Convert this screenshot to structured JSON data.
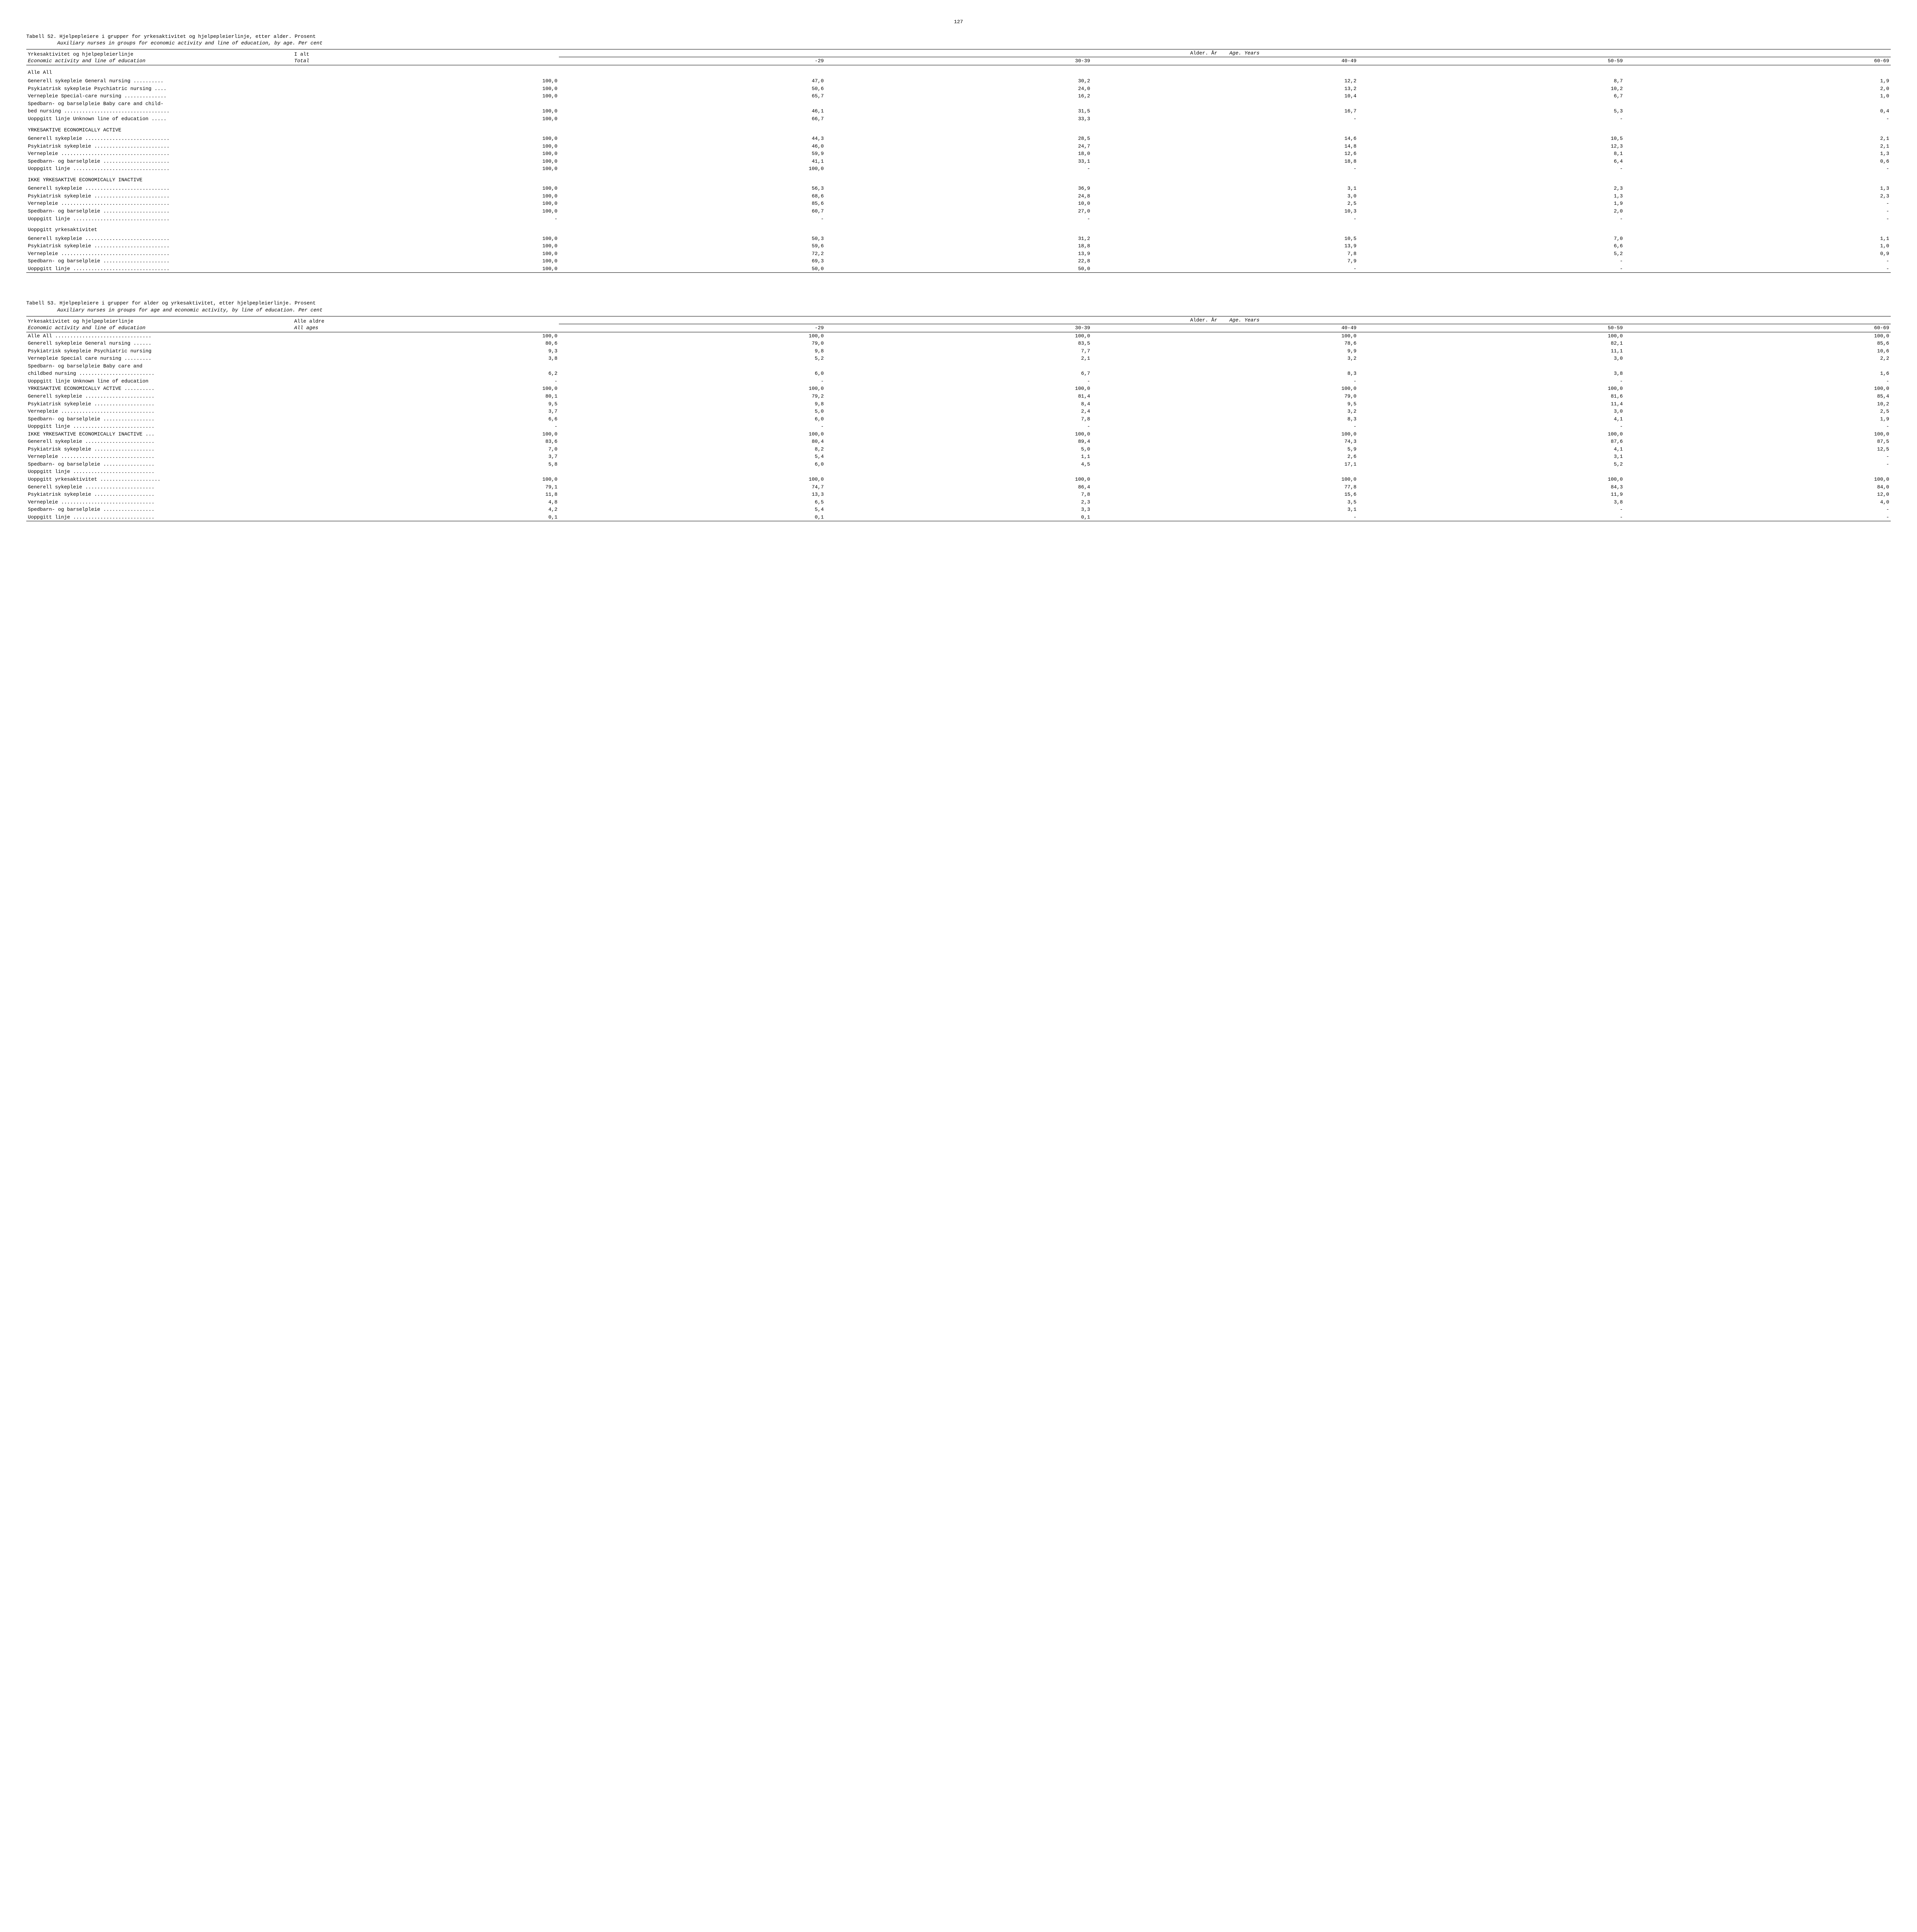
{
  "page_number": "127",
  "tables": [
    {
      "title_no": "Tabell 52.  Hjelpepleiere i grupper for yrkesaktivitet og hjelpepleierlinje, etter alder.  Prosent",
      "title_en": "Auxiliary nurses in groups for economic activity and line of education, by age.  Per cent",
      "header": {
        "label_no": "Yrkesaktivitet og hjelpepleierlinje",
        "label_en": "Economic activity and line of education",
        "total_no": "I alt",
        "total_en": "Total",
        "age_no": "Alder. År",
        "age_en": "Age. Years",
        "cols": [
          "-29",
          "30-39",
          "40-49",
          "50-59",
          "60-69"
        ]
      },
      "sections": [
        {
          "heading": "Alle  All",
          "heading_italic_part": "All",
          "rows": [
            {
              "label": "Generell sykepleie  General nursing ..........",
              "v": [
                "100,0",
                "47,0",
                "30,2",
                "12,2",
                "8,7",
                "1,9"
              ]
            },
            {
              "label": "Psykiatrisk sykepleie  Psychiatric nursing ....",
              "v": [
                "100,0",
                "50,6",
                "24,0",
                "13,2",
                "10,2",
                "2,0"
              ]
            },
            {
              "label": "Vernepleie  Special-care nursing ..............",
              "v": [
                "100,0",
                "65,7",
                "16,2",
                "10,4",
                "6,7",
                "1,0"
              ]
            },
            {
              "label": "Spedbarn- og barselpleie  Baby care and child-",
              "v": [
                "",
                "",
                "",
                "",
                "",
                ""
              ]
            },
            {
              "label": "bed nursing ...................................",
              "v": [
                "100,0",
                "46,1",
                "31,5",
                "16,7",
                "5,3",
                "0,4"
              ]
            },
            {
              "label": "Uoppgitt linje  Unknown line of education .....",
              "v": [
                "100,0",
                "66,7",
                "33,3",
                "-",
                "-",
                "-"
              ]
            }
          ]
        },
        {
          "heading": "YRKESAKTIVE  ECONOMICALLY ACTIVE",
          "rows": [
            {
              "label": "Generell sykepleie ............................",
              "v": [
                "100,0",
                "44,3",
                "28,5",
                "14,6",
                "10,5",
                "2,1"
              ]
            },
            {
              "label": "Psykiatrisk sykepleie .........................",
              "v": [
                "100,0",
                "46,0",
                "24,7",
                "14,8",
                "12,3",
                "2,1"
              ]
            },
            {
              "label": "Vernepleie ....................................",
              "v": [
                "100,0",
                "59,9",
                "18,0",
                "12,6",
                "8,1",
                "1,3"
              ]
            },
            {
              "label": "Spedbarn- og barselpleie ......................",
              "v": [
                "100,0",
                "41,1",
                "33,1",
                "18,8",
                "6,4",
                "0,6"
              ]
            },
            {
              "label": "Uoppgitt linje ................................",
              "v": [
                "100,0",
                "100,0",
                "-",
                "-",
                "-",
                "-"
              ]
            }
          ]
        },
        {
          "heading": "IKKE YRKESAKTIVE  ECONOMICALLY INACTIVE",
          "rows": [
            {
              "label": "Generell sykepleie ............................",
              "v": [
                "100,0",
                "56,3",
                "36,9",
                "3,1",
                "2,3",
                "1,3"
              ]
            },
            {
              "label": "Psykiatrisk sykepleie .........................",
              "v": [
                "100,0",
                "68,6",
                "24,8",
                "3,0",
                "1,3",
                "2,3"
              ]
            },
            {
              "label": "Vernepleie ....................................",
              "v": [
                "100,0",
                "85,6",
                "10,0",
                "2,5",
                "1,9",
                "-"
              ]
            },
            {
              "label": "Spedbarn- og barselpleie ......................",
              "v": [
                "100,0",
                "60,7",
                "27,0",
                "10,3",
                "2,0",
                "-"
              ]
            },
            {
              "label": "Uoppgitt linje ................................",
              "v": [
                "-",
                "-",
                "-",
                "-",
                "-",
                "-"
              ]
            }
          ]
        },
        {
          "heading": "Uoppgitt yrkesaktivitet",
          "rows": [
            {
              "label": "Generell sykepleie ............................",
              "v": [
                "100,0",
                "50,3",
                "31,2",
                "10,5",
                "7,0",
                "1,1"
              ]
            },
            {
              "label": "Psykiatrisk sykepleie .........................",
              "v": [
                "100,0",
                "59,6",
                "18,8",
                "13,9",
                "6,6",
                "1,0"
              ]
            },
            {
              "label": "Vernepleie ....................................",
              "v": [
                "100,0",
                "72,2",
                "13,9",
                "7,8",
                "5,2",
                "0,9"
              ]
            },
            {
              "label": "Spedbarn- og barselpleie ......................",
              "v": [
                "100,0",
                "69,3",
                "22,8",
                "7,9",
                "-",
                "-"
              ]
            },
            {
              "label": "Uoppgitt linje ................................",
              "v": [
                "100,0",
                "50,0",
                "50,0",
                "-",
                "-",
                "-"
              ]
            }
          ]
        }
      ]
    },
    {
      "title_no": "Tabell 53.  Hjelpepleiere i grupper for alder og yrkesaktivitet, etter hjelpepleierlinje.  Prosent",
      "title_en": "Auxiliary nurses in groups for age and economic activity, by line of education.  Per cent",
      "header": {
        "label_no": "Yrkesaktivitet og hjelpepleierlinje",
        "label_en": "Economic activity and line of education",
        "total_no": "Alle aldre",
        "total_en": "All ages",
        "age_no": "Alder. År",
        "age_en": "Age. Years",
        "cols": [
          "-29",
          "30-39",
          "40-49",
          "50-59",
          "60-69"
        ]
      },
      "sections": [
        {
          "heading": "",
          "rows": [
            {
              "label": "Alle  All  ................................",
              "v": [
                "100,0",
                "100,0",
                "100,0",
                "100,0",
                "100,0",
                "100,0"
              ]
            }
          ]
        },
        {
          "heading": "",
          "rows": [
            {
              "label": "Generell sykepleie  General nursing ......",
              "v": [
                "80,6",
                "79,0",
                "83,5",
                "78,6",
                "82,1",
                "85,6"
              ]
            },
            {
              "label": "Psykiatrisk sykepleie  Psychiatric nursing",
              "v": [
                "9,3",
                "9,8",
                "7,7",
                "9,9",
                "11,1",
                "10,6"
              ]
            },
            {
              "label": "Vernepleie  Special care nursing .........",
              "v": [
                "3,8",
                "5,2",
                "2,1",
                "3,2",
                "3,0",
                "2,2"
              ]
            },
            {
              "label": "Spedbarn- og barselpleie  Baby care and",
              "v": [
                "",
                "",
                "",
                "",
                "",
                ""
              ]
            },
            {
              "label": "childbed nursing .........................",
              "v": [
                "6,2",
                "6,0",
                "6,7",
                "8,3",
                "3,8",
                "1,6"
              ]
            },
            {
              "label": "Uoppgitt linje  Unknown line of education ",
              "v": [
                "-",
                "-",
                "-",
                "-",
                "-",
                "-"
              ]
            }
          ]
        },
        {
          "heading": "",
          "rows": [
            {
              "label": "YRKESAKTIVE  ECONOMICALLY ACTIVE ..........",
              "v": [
                "100,0",
                "100,0",
                "100,0",
                "100,0",
                "100,0",
                "100,0"
              ]
            }
          ]
        },
        {
          "heading": "",
          "rows": [
            {
              "label": "Generell sykepleie .......................",
              "v": [
                "80,1",
                "79,2",
                "81,4",
                "79,0",
                "81,6",
                "85,4"
              ]
            },
            {
              "label": "Psykiatrisk sykepleie ....................",
              "v": [
                "9,5",
                "9,8",
                "8,4",
                "9,5",
                "11,4",
                "10,2"
              ]
            },
            {
              "label": "Vernepleie ...............................",
              "v": [
                "3,7",
                "5,0",
                "2,4",
                "3,2",
                "3,0",
                "2,5"
              ]
            },
            {
              "label": "Spedbarn- og barselpleie .................",
              "v": [
                "6,6",
                "6,0",
                "7,8",
                "8,3",
                "4,1",
                "1,9"
              ]
            },
            {
              "label": "Uoppgitt linje ...........................",
              "v": [
                "-",
                "-",
                "-",
                "-",
                "-",
                "-"
              ]
            }
          ]
        },
        {
          "heading": "",
          "rows": [
            {
              "label": "IKKE YRKESAKTIVE  ECONOMICALLY INACTIVE ...",
              "v": [
                "100,0",
                "100,0",
                "100,0",
                "100,0",
                "100,0",
                "100,0"
              ]
            }
          ]
        },
        {
          "heading": "",
          "rows": [
            {
              "label": "Generell sykepleie .......................",
              "v": [
                "83,6",
                "80,4",
                "89,4",
                "74,3",
                "87,6",
                "87,5"
              ]
            },
            {
              "label": "Psykiatrisk sykepleie ....................",
              "v": [
                "7,0",
                "8,2",
                "5,0",
                "5,9",
                "4,1",
                "12,5"
              ]
            },
            {
              "label": "Vernepleie ...............................",
              "v": [
                "3,7",
                "5,4",
                "1,1",
                "2,6",
                "3,1",
                "-"
              ]
            },
            {
              "label": "Spedbarn- og barselpleie .................",
              "v": [
                "5,8",
                "6,0",
                "4,5",
                "17,1",
                "5,2",
                "-"
              ]
            },
            {
              "label": "Uoppgitt linje ...........................",
              "v": [
                "",
                "",
                "",
                "",
                "",
                ""
              ]
            }
          ]
        },
        {
          "heading": "",
          "rows": [
            {
              "label": "Uoppgitt yrkesaktivitet ....................",
              "v": [
                "100,0",
                "100,0",
                "100,0",
                "100,0",
                "100,0",
                "100,0"
              ]
            }
          ]
        },
        {
          "heading": "",
          "rows": [
            {
              "label": "Generell sykepleie .......................",
              "v": [
                "79,1",
                "74,7",
                "86,4",
                "77,8",
                "84,3",
                "84,0"
              ]
            },
            {
              "label": "Psykiatrisk sykepleie ....................",
              "v": [
                "11,8",
                "13,3",
                "7,8",
                "15,6",
                "11,9",
                "12,0"
              ]
            },
            {
              "label": "Vernepleie ...............................",
              "v": [
                "4,8",
                "6,5",
                "2,3",
                "3,5",
                "3,8",
                "4,0"
              ]
            },
            {
              "label": "Spedbarn- og barselpleie .................",
              "v": [
                "4,2",
                "5,4",
                "3,3",
                "3,1",
                "-",
                "-"
              ]
            },
            {
              "label": "Uoppgitt linje ...........................",
              "v": [
                "0,1",
                "0,1",
                "0,1",
                "-",
                "-",
                "-"
              ]
            }
          ]
        }
      ]
    }
  ]
}
